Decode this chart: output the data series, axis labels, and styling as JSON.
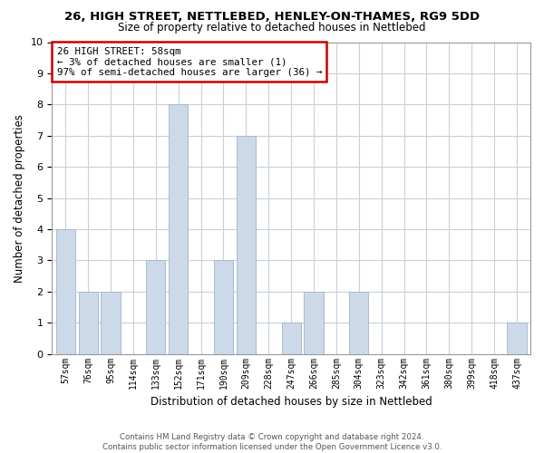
{
  "title": "26, HIGH STREET, NETTLEBED, HENLEY-ON-THAMES, RG9 5DD",
  "subtitle": "Size of property relative to detached houses in Nettlebed",
  "xlabel": "Distribution of detached houses by size in Nettlebed",
  "ylabel": "Number of detached properties",
  "bin_labels": [
    "57sqm",
    "76sqm",
    "95sqm",
    "114sqm",
    "133sqm",
    "152sqm",
    "171sqm",
    "190sqm",
    "209sqm",
    "228sqm",
    "247sqm",
    "266sqm",
    "285sqm",
    "304sqm",
    "323sqm",
    "342sqm",
    "361sqm",
    "380sqm",
    "399sqm",
    "418sqm",
    "437sqm"
  ],
  "counts": [
    4,
    2,
    2,
    0,
    3,
    8,
    0,
    3,
    7,
    0,
    1,
    2,
    0,
    2,
    0,
    0,
    0,
    0,
    0,
    0,
    1
  ],
  "bar_color": "#ccd9e8",
  "bar_edge_color": "#aabcce",
  "ylim": [
    0,
    10
  ],
  "yticks": [
    0,
    1,
    2,
    3,
    4,
    5,
    6,
    7,
    8,
    9,
    10
  ],
  "annotation_line1": "26 HIGH STREET: 58sqm",
  "annotation_line2": "← 3% of detached houses are smaller (1)",
  "annotation_line3": "97% of semi-detached houses are larger (36) →",
  "annotation_box_color": "#ffffff",
  "annotation_box_edge_color": "#cc0000",
  "footer_line1": "Contains HM Land Registry data © Crown copyright and database right 2024.",
  "footer_line2": "Contains public sector information licensed under the Open Government Licence v3.0.",
  "background_color": "#ffffff",
  "grid_color": "#c8d0d8"
}
